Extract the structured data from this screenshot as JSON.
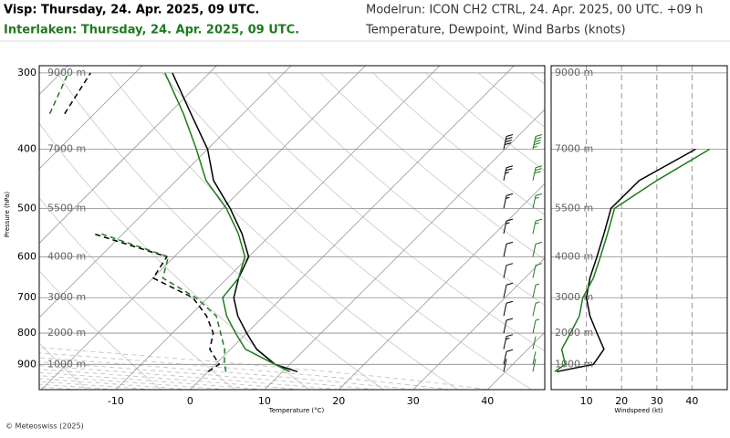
{
  "header": {
    "modelrun": "Modelrun: ICON CH2 CTRL, 24. Apr. 2025, 00 UTC. +09 h",
    "description": "Temperature, Dewpoint, Wind Barbs (knots)"
  },
  "credit": "© Meteoswiss (2025)",
  "chart_data": [
    {
      "type": "skewt",
      "xlabel": "Temperature (°C)",
      "ylabel": "Pressure (hPa)",
      "log_y": true,
      "levels": [
        925,
        900,
        850,
        800,
        750,
        700,
        650,
        600,
        550,
        500,
        450,
        400,
        350,
        300
      ],
      "series": [
        {
          "name": "Visp: Thursday, 24. Apr. 2025, 09 UTC.",
          "color": "#000000",
          "temperature": [
            12,
            8,
            3.5,
            0,
            -3.5,
            -6.5,
            -8.5,
            -10,
            -14,
            -19,
            -25,
            -30,
            -37,
            -45
          ],
          "dewpoint": [
            0,
            0.5,
            -2.8,
            -4.5,
            -7.7,
            -12,
            -20,
            -21,
            -34,
            null,
            null,
            null,
            -54,
            -56
          ]
        },
        {
          "name": "Interlaken: Thursday, 24. Apr. 2025, 09 UTC.",
          "color": "#1e7b1e",
          "temperature": [
            11,
            8,
            2,
            -1.5,
            -5,
            -8,
            -8.5,
            -10.5,
            -14.5,
            -19.5,
            -26,
            -31.5,
            -38,
            -46
          ],
          "dewpoint": [
            2.4,
            1.2,
            -0.8,
            -3.5,
            -6.4,
            -11.6,
            -18.7,
            -20.8,
            -33,
            null,
            null,
            null,
            -56,
            -59
          ]
        }
      ],
      "xlim": [
        -20.3,
        47.7
      ],
      "xticks": [
        -10,
        0,
        10,
        20,
        30,
        40
      ],
      "ylim": [
        990,
        292
      ],
      "yticks": [
        300,
        400,
        500,
        600,
        700,
        800,
        900
      ],
      "height_labels": [
        "9000 m",
        "7000 m",
        "5500 m",
        "4000 m",
        "3000 m",
        "2000 m",
        "1000 m"
      ]
    },
    {
      "type": "line",
      "xlabel": "Windspeed (kt)",
      "levels": [
        925,
        900,
        850,
        800,
        750,
        700,
        650,
        600,
        550,
        500,
        450,
        400,
        350,
        300
      ],
      "series": [
        {
          "color": "#000000",
          "values": [
            1.6,
            12,
            15,
            13,
            11,
            10,
            11,
            13,
            15,
            17,
            25,
            41,
            null,
            null
          ]
        },
        {
          "color": "#1e7b1e",
          "values": [
            1,
            4,
            3,
            5.5,
            8,
            9,
            12,
            14,
            16,
            18,
            30,
            45,
            null,
            null
          ]
        }
      ],
      "xlim": [
        0,
        50
      ],
      "xticks": [
        10,
        20,
        30,
        40
      ],
      "ylim": [
        990,
        292
      ]
    }
  ]
}
